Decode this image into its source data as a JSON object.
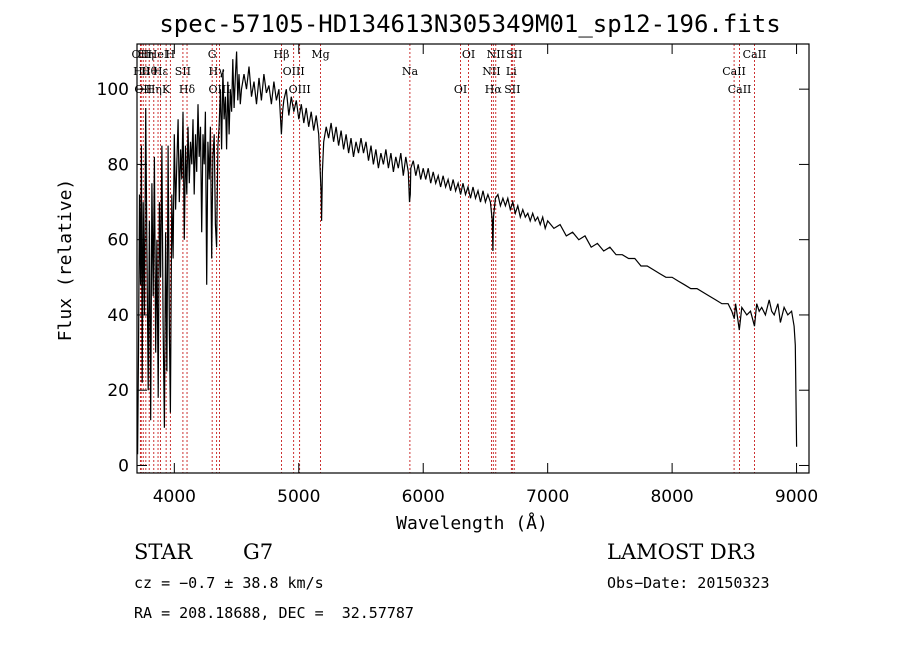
{
  "chart_data": {
    "type": "line",
    "title": "spec-57105-HD134613N305349M01_sp12-196.fits",
    "xlabel": "Wavelength (Å)",
    "ylabel": "Flux (relative)",
    "xlim": [
      3700,
      9100
    ],
    "ylim": [
      -2,
      112
    ],
    "xticks": [
      "4000",
      "5000",
      "6000",
      "7000",
      "8000",
      "9000"
    ],
    "yticks": [
      "0",
      "20",
      "40",
      "60",
      "80",
      "100"
    ],
    "grid": false,
    "series": [
      {
        "values_xy": [
          [
            3705,
            3
          ],
          [
            3712,
            30
          ],
          [
            3720,
            72
          ],
          [
            3728,
            48
          ],
          [
            3735,
            85
          ],
          [
            3742,
            22
          ],
          [
            3750,
            70
          ],
          [
            3760,
            40
          ],
          [
            3770,
            95
          ],
          [
            3780,
            55
          ],
          [
            3790,
            20
          ],
          [
            3800,
            65
          ],
          [
            3810,
            12
          ],
          [
            3820,
            75
          ],
          [
            3830,
            45
          ],
          [
            3840,
            82
          ],
          [
            3850,
            30
          ],
          [
            3860,
            60
          ],
          [
            3870,
            18
          ],
          [
            3880,
            70
          ],
          [
            3890,
            50
          ],
          [
            3900,
            85
          ],
          [
            3910,
            38
          ],
          [
            3920,
            10
          ],
          [
            3930,
            62
          ],
          [
            3940,
            25
          ],
          [
            3950,
            85
          ],
          [
            3960,
            35
          ],
          [
            3968,
            14
          ],
          [
            3980,
            72
          ],
          [
            3990,
            55
          ],
          [
            4000,
            88
          ],
          [
            4010,
            68
          ],
          [
            4020,
            80
          ],
          [
            4030,
            92
          ],
          [
            4040,
            70
          ],
          [
            4050,
            84
          ],
          [
            4060,
            76
          ],
          [
            4070,
            94
          ],
          [
            4080,
            60
          ],
          [
            4090,
            85
          ],
          [
            4100,
            72
          ],
          [
            4110,
            90
          ],
          [
            4120,
            75
          ],
          [
            4130,
            86
          ],
          [
            4140,
            80
          ],
          [
            4150,
            92
          ],
          [
            4160,
            72
          ],
          [
            4170,
            88
          ],
          [
            4180,
            78
          ],
          [
            4190,
            96
          ],
          [
            4200,
            82
          ],
          [
            4210,
            90
          ],
          [
            4220,
            62
          ],
          [
            4230,
            88
          ],
          [
            4240,
            80
          ],
          [
            4250,
            94
          ],
          [
            4260,
            48
          ],
          [
            4270,
            86
          ],
          [
            4280,
            76
          ],
          [
            4290,
            90
          ],
          [
            4300,
            55
          ],
          [
            4310,
            82
          ],
          [
            4320,
            88
          ],
          [
            4330,
            64
          ],
          [
            4340,
            58
          ],
          [
            4350,
            85
          ],
          [
            4360,
            90
          ],
          [
            4370,
            100
          ],
          [
            4380,
            84
          ],
          [
            4390,
            105
          ],
          [
            4400,
            92
          ],
          [
            4410,
            98
          ],
          [
            4420,
            84
          ],
          [
            4430,
            102
          ],
          [
            4440,
            88
          ],
          [
            4450,
            100
          ],
          [
            4460,
            94
          ],
          [
            4470,
            108
          ],
          [
            4480,
            95
          ],
          [
            4490,
            103
          ],
          [
            4500,
            110
          ],
          [
            4510,
            97
          ],
          [
            4520,
            104
          ],
          [
            4530,
            96
          ],
          [
            4540,
            100
          ],
          [
            4560,
            104
          ],
          [
            4580,
            100
          ],
          [
            4600,
            106
          ],
          [
            4620,
            98
          ],
          [
            4640,
            102
          ],
          [
            4660,
            96
          ],
          [
            4680,
            103
          ],
          [
            4700,
            97
          ],
          [
            4720,
            104
          ],
          [
            4740,
            99
          ],
          [
            4760,
            101
          ],
          [
            4780,
            96
          ],
          [
            4800,
            102
          ],
          [
            4820,
            97
          ],
          [
            4840,
            100
          ],
          [
            4860,
            88
          ],
          [
            4870,
            94
          ],
          [
            4880,
            97
          ],
          [
            4900,
            100
          ],
          [
            4920,
            93
          ],
          [
            4940,
            98
          ],
          [
            4960,
            94
          ],
          [
            4980,
            97
          ],
          [
            5000,
            92
          ],
          [
            5020,
            96
          ],
          [
            5040,
            91
          ],
          [
            5060,
            95
          ],
          [
            5080,
            90
          ],
          [
            5100,
            94
          ],
          [
            5120,
            89
          ],
          [
            5140,
            93
          ],
          [
            5160,
            88
          ],
          [
            5170,
            80
          ],
          [
            5180,
            72
          ],
          [
            5183,
            65
          ],
          [
            5190,
            78
          ],
          [
            5200,
            86
          ],
          [
            5220,
            90
          ],
          [
            5240,
            87
          ],
          [
            5260,
            91
          ],
          [
            5280,
            86
          ],
          [
            5300,
            90
          ],
          [
            5320,
            85
          ],
          [
            5340,
            89
          ],
          [
            5360,
            84
          ],
          [
            5380,
            88
          ],
          [
            5400,
            83
          ],
          [
            5420,
            87
          ],
          [
            5440,
            82
          ],
          [
            5460,
            86
          ],
          [
            5480,
            83
          ],
          [
            5500,
            87
          ],
          [
            5520,
            83
          ],
          [
            5540,
            86
          ],
          [
            5560,
            81
          ],
          [
            5580,
            85
          ],
          [
            5600,
            80
          ],
          [
            5620,
            84
          ],
          [
            5640,
            79
          ],
          [
            5660,
            83
          ],
          [
            5680,
            80
          ],
          [
            5700,
            84
          ],
          [
            5720,
            79
          ],
          [
            5740,
            83
          ],
          [
            5760,
            78
          ],
          [
            5780,
            82
          ],
          [
            5800,
            79
          ],
          [
            5820,
            83
          ],
          [
            5840,
            77
          ],
          [
            5860,
            82
          ],
          [
            5880,
            78
          ],
          [
            5890,
            70
          ],
          [
            5896,
            72
          ],
          [
            5900,
            79
          ],
          [
            5920,
            81
          ],
          [
            5940,
            77
          ],
          [
            5960,
            80
          ],
          [
            5980,
            76
          ],
          [
            6000,
            79
          ],
          [
            6020,
            76
          ],
          [
            6040,
            79
          ],
          [
            6060,
            75
          ],
          [
            6080,
            78
          ],
          [
            6100,
            75
          ],
          [
            6120,
            77
          ],
          [
            6140,
            74
          ],
          [
            6160,
            77
          ],
          [
            6180,
            74
          ],
          [
            6200,
            76
          ],
          [
            6220,
            73
          ],
          [
            6240,
            76
          ],
          [
            6260,
            73
          ],
          [
            6280,
            75
          ],
          [
            6300,
            72
          ],
          [
            6320,
            75
          ],
          [
            6340,
            72
          ],
          [
            6360,
            74
          ],
          [
            6380,
            71
          ],
          [
            6400,
            74
          ],
          [
            6420,
            71
          ],
          [
            6440,
            73
          ],
          [
            6460,
            70
          ],
          [
            6480,
            73
          ],
          [
            6500,
            70
          ],
          [
            6520,
            72
          ],
          [
            6540,
            70
          ],
          [
            6555,
            65
          ],
          [
            6560,
            57
          ],
          [
            6565,
            66
          ],
          [
            6580,
            71
          ],
          [
            6600,
            72
          ],
          [
            6620,
            69
          ],
          [
            6640,
            71
          ],
          [
            6660,
            69
          ],
          [
            6680,
            71
          ],
          [
            6700,
            68
          ],
          [
            6720,
            70
          ],
          [
            6740,
            67
          ],
          [
            6760,
            69
          ],
          [
            6780,
            66
          ],
          [
            6800,
            68
          ],
          [
            6820,
            66
          ],
          [
            6840,
            67
          ],
          [
            6860,
            65
          ],
          [
            6880,
            67
          ],
          [
            6900,
            65
          ],
          [
            6920,
            66
          ],
          [
            6940,
            64
          ],
          [
            6960,
            66
          ],
          [
            6980,
            63
          ],
          [
            7000,
            65
          ],
          [
            7050,
            63
          ],
          [
            7100,
            64
          ],
          [
            7150,
            61
          ],
          [
            7200,
            62
          ],
          [
            7250,
            60
          ],
          [
            7300,
            61
          ],
          [
            7350,
            58
          ],
          [
            7400,
            59
          ],
          [
            7450,
            57
          ],
          [
            7500,
            58
          ],
          [
            7550,
            56
          ],
          [
            7600,
            56
          ],
          [
            7650,
            55
          ],
          [
            7700,
            55
          ],
          [
            7750,
            53
          ],
          [
            7800,
            53
          ],
          [
            7850,
            52
          ],
          [
            7900,
            51
          ],
          [
            7950,
            50
          ],
          [
            8000,
            50
          ],
          [
            8050,
            49
          ],
          [
            8100,
            48
          ],
          [
            8150,
            47
          ],
          [
            8200,
            47
          ],
          [
            8250,
            46
          ],
          [
            8300,
            45
          ],
          [
            8350,
            44
          ],
          [
            8400,
            43
          ],
          [
            8450,
            43
          ],
          [
            8480,
            41
          ],
          [
            8500,
            39
          ],
          [
            8510,
            43
          ],
          [
            8540,
            36
          ],
          [
            8560,
            42
          ],
          [
            8600,
            40
          ],
          [
            8630,
            41
          ],
          [
            8662,
            37
          ],
          [
            8680,
            43
          ],
          [
            8700,
            41
          ],
          [
            8720,
            42
          ],
          [
            8750,
            40
          ],
          [
            8780,
            44
          ],
          [
            8800,
            41
          ],
          [
            8820,
            40
          ],
          [
            8850,
            43
          ],
          [
            8870,
            38
          ],
          [
            8900,
            42
          ],
          [
            8930,
            40
          ],
          [
            8960,
            41
          ],
          [
            8980,
            37
          ],
          [
            8990,
            32
          ],
          [
            9000,
            5
          ]
        ],
        "color": "#000000"
      }
    ],
    "lines": [
      {
        "x": 3727,
        "label": "OII"
      },
      {
        "x": 3734,
        "label": "Hθ"
      },
      {
        "x": 3750,
        "label": "OII"
      },
      {
        "x": 3771,
        "label": "Hη"
      },
      {
        "x": 3798,
        "label": "Hθ"
      },
      {
        "x": 3835,
        "label": "Hη"
      },
      {
        "x": 3869,
        "label": "HeI"
      },
      {
        "x": 3889,
        "label": "Hε"
      },
      {
        "x": 3934,
        "label": "K"
      },
      {
        "x": 3968,
        "label": "H"
      },
      {
        "x": 4069,
        "label": "SII"
      },
      {
        "x": 4102,
        "label": "Hδ"
      },
      {
        "x": 4304,
        "label": "G"
      },
      {
        "x": 4340,
        "label": "Hγ"
      },
      {
        "x": 4363,
        "label": "OIII"
      },
      {
        "x": 4861,
        "label": "Hβ"
      },
      {
        "x": 4959,
        "label": "OIII"
      },
      {
        "x": 5007,
        "label": "OIII"
      },
      {
        "x": 5175,
        "label": "Mg"
      },
      {
        "x": 5893,
        "label": "Na"
      },
      {
        "x": 6300,
        "label": "OI"
      },
      {
        "x": 6364,
        "label": "OI"
      },
      {
        "x": 6548,
        "label": "NII"
      },
      {
        "x": 6563,
        "label": "Hα"
      },
      {
        "x": 6583,
        "label": "NII"
      },
      {
        "x": 6708,
        "label": "Li"
      },
      {
        "x": 6716,
        "label": "SII"
      },
      {
        "x": 6731,
        "label": "SII"
      },
      {
        "x": 8498,
        "label": "CaII"
      },
      {
        "x": 8542,
        "label": "CaII"
      },
      {
        "x": 8662,
        "label": "CaII"
      }
    ],
    "line_color": "#c00000"
  },
  "info": {
    "class_label": "STAR",
    "subclass": "G7",
    "survey": "LAMOST DR3",
    "cz": "cz = −0.7 ± 38.8 km/s",
    "obs_date": "Obs−Date: 20150323",
    "radec": "RA = 208.18688, DEC =  32.57787"
  }
}
